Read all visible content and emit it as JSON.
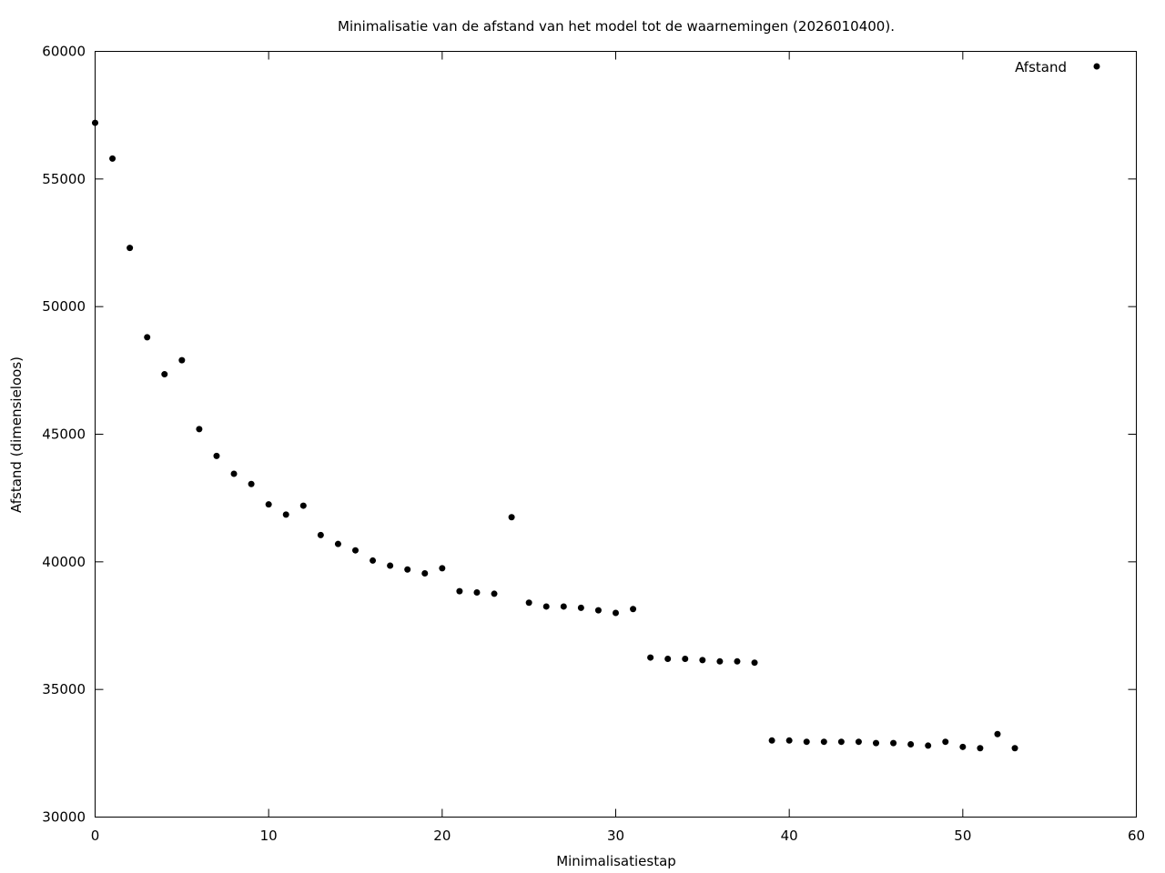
{
  "chart_data": {
    "type": "scatter",
    "title": "Minimalisatie van de afstand van het model tot de waarnemingen (2026010400).",
    "xlabel": "Minimalisatiestap",
    "ylabel": "Afstand (dimensieloos)",
    "xlim": [
      0,
      60
    ],
    "ylim": [
      30000,
      60000
    ],
    "xticks": [
      0,
      10,
      20,
      30,
      40,
      50,
      60
    ],
    "yticks": [
      30000,
      35000,
      40000,
      45000,
      50000,
      55000,
      60000
    ],
    "xtick_labels": [
      "0",
      "10",
      "20",
      "30",
      "40",
      "50",
      "60"
    ],
    "ytick_labels": [
      "30000",
      "35000",
      "40000",
      "45000",
      "50000",
      "55000",
      "60000"
    ],
    "grid": false,
    "legend_position": "top-right",
    "series": [
      {
        "name": "Afstand",
        "color": "#000000",
        "x": [
          0,
          1,
          2,
          3,
          4,
          5,
          6,
          7,
          8,
          9,
          10,
          11,
          12,
          13,
          14,
          15,
          16,
          17,
          18,
          19,
          20,
          21,
          22,
          23,
          24,
          25,
          26,
          27,
          28,
          29,
          30,
          31,
          32,
          33,
          34,
          35,
          36,
          37,
          38,
          39,
          40,
          41,
          42,
          43,
          44,
          45,
          46,
          47,
          48,
          49,
          50,
          51,
          52,
          53
        ],
        "y": [
          57200,
          55800,
          52300,
          48800,
          47350,
          47900,
          45200,
          44150,
          43450,
          43050,
          42250,
          41850,
          42200,
          41050,
          40700,
          40450,
          40050,
          39850,
          39700,
          39550,
          39750,
          38850,
          38800,
          38750,
          41750,
          38400,
          38250,
          38250,
          38200,
          38100,
          38000,
          38150,
          36250,
          36200,
          36200,
          36150,
          36100,
          36100,
          36050,
          33000,
          33000,
          32950,
          32950,
          32950,
          32950,
          32900,
          32900,
          32850,
          32800,
          32950,
          32750,
          32700,
          33250,
          32700
        ]
      }
    ]
  }
}
